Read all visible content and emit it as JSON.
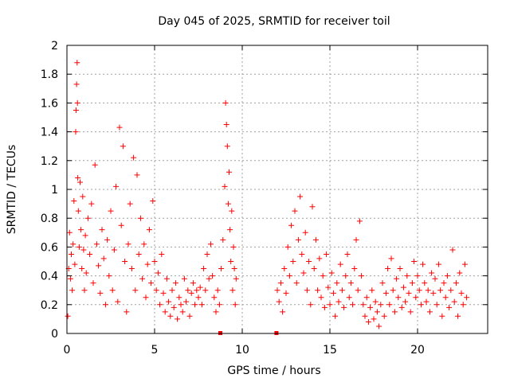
{
  "chart_data": {
    "type": "scatter",
    "title": "Day 045 of 2025, SRMTID for receiver toil",
    "xlabel": "GPS time / hours",
    "ylabel": "SRMTID / TECUs",
    "xlim": [
      0,
      24
    ],
    "ylim": [
      0,
      2
    ],
    "xticks": [
      0,
      5,
      10,
      15,
      20
    ],
    "xtick_labels": [
      "0",
      "5",
      "10",
      "15",
      "20"
    ],
    "yticks": [
      0,
      0.2,
      0.4,
      0.6,
      0.8,
      1.0,
      1.2,
      1.4,
      1.6,
      1.8,
      2.0
    ],
    "ytick_labels": [
      "0",
      "0.2",
      "0.4",
      "0.6",
      "0.8",
      "1",
      "1.2",
      "1.4",
      "1.6",
      "1.8",
      "2"
    ],
    "grid": true,
    "marker": "+",
    "color": "#ff0000",
    "series": [
      {
        "name": "SRMTID",
        "points": [
          [
            0.05,
            0.12
          ],
          [
            0.1,
            0.45
          ],
          [
            0.15,
            0.7
          ],
          [
            0.2,
            0.38
          ],
          [
            0.25,
            0.55
          ],
          [
            0.3,
            0.3
          ],
          [
            0.35,
            0.62
          ],
          [
            0.4,
            0.92
          ],
          [
            0.45,
            0.48
          ],
          [
            0.5,
            1.4
          ],
          [
            0.52,
            1.55
          ],
          [
            0.55,
            1.73
          ],
          [
            0.58,
            1.88
          ],
          [
            0.6,
            1.6
          ],
          [
            0.62,
            1.08
          ],
          [
            0.65,
            0.85
          ],
          [
            0.7,
            0.6
          ],
          [
            0.75,
            1.05
          ],
          [
            0.8,
            0.72
          ],
          [
            0.85,
            0.45
          ],
          [
            0.9,
            0.95
          ],
          [
            0.95,
            0.58
          ],
          [
            1.0,
            0.3
          ],
          [
            1.05,
            0.68
          ],
          [
            1.1,
            0.42
          ],
          [
            1.2,
            0.8
          ],
          [
            1.3,
            0.55
          ],
          [
            1.4,
            0.9
          ],
          [
            1.5,
            0.35
          ],
          [
            1.6,
            1.17
          ],
          [
            1.7,
            0.62
          ],
          [
            1.8,
            0.47
          ],
          [
            1.9,
            0.28
          ],
          [
            2.0,
            0.72
          ],
          [
            2.1,
            0.52
          ],
          [
            2.2,
            0.2
          ],
          [
            2.3,
            0.65
          ],
          [
            2.4,
            0.4
          ],
          [
            2.5,
            0.85
          ],
          [
            2.6,
            0.3
          ],
          [
            2.7,
            0.58
          ],
          [
            2.8,
            1.02
          ],
          [
            2.9,
            0.22
          ],
          [
            3.0,
            1.43
          ],
          [
            3.1,
            0.75
          ],
          [
            3.2,
            1.3
          ],
          [
            3.3,
            0.5
          ],
          [
            3.4,
            0.15
          ],
          [
            3.5,
            0.62
          ],
          [
            3.6,
            0.9
          ],
          [
            3.7,
            0.45
          ],
          [
            3.8,
            1.22
          ],
          [
            3.9,
            0.3
          ],
          [
            4.0,
            1.1
          ],
          [
            4.1,
            0.55
          ],
          [
            4.2,
            0.8
          ],
          [
            4.3,
            0.38
          ],
          [
            4.4,
            0.62
          ],
          [
            4.5,
            0.25
          ],
          [
            4.6,
            0.48
          ],
          [
            4.7,
            0.72
          ],
          [
            4.8,
            0.35
          ],
          [
            4.9,
            0.92
          ],
          [
            5.0,
            0.5
          ],
          [
            5.1,
            0.3
          ],
          [
            5.2,
            0.42
          ],
          [
            5.3,
            0.2
          ],
          [
            5.4,
            0.55
          ],
          [
            5.5,
            0.28
          ],
          [
            5.6,
            0.15
          ],
          [
            5.7,
            0.38
          ],
          [
            5.8,
            0.22
          ],
          [
            5.9,
            0.12
          ],
          [
            6.0,
            0.3
          ],
          [
            6.1,
            0.18
          ],
          [
            6.2,
            0.35
          ],
          [
            6.3,
            0.1
          ],
          [
            6.4,
            0.25
          ],
          [
            6.5,
            0.2
          ],
          [
            6.6,
            0.15
          ],
          [
            6.7,
            0.38
          ],
          [
            6.8,
            0.22
          ],
          [
            6.9,
            0.3
          ],
          [
            7.0,
            0.12
          ],
          [
            7.1,
            0.28
          ],
          [
            7.2,
            0.35
          ],
          [
            7.3,
            0.2
          ],
          [
            7.4,
            0.3
          ],
          [
            7.5,
            0.25
          ],
          [
            7.6,
            0.32
          ],
          [
            7.7,
            0.2
          ],
          [
            7.8,
            0.45
          ],
          [
            7.9,
            0.3
          ],
          [
            8.0,
            0.55
          ],
          [
            8.1,
            0.38
          ],
          [
            8.2,
            0.62
          ],
          [
            8.3,
            0.4
          ],
          [
            8.4,
            0.25
          ],
          [
            8.5,
            0.15
          ],
          [
            8.6,
            0.3
          ],
          [
            8.7,
            0.2
          ],
          [
            8.8,
            0.45
          ],
          [
            8.9,
            0.65
          ],
          [
            9.0,
            1.02
          ],
          [
            9.05,
            1.6
          ],
          [
            9.1,
            1.45
          ],
          [
            9.15,
            1.3
          ],
          [
            9.2,
            0.9
          ],
          [
            9.25,
            1.12
          ],
          [
            9.3,
            0.72
          ],
          [
            9.35,
            0.5
          ],
          [
            9.4,
            0.85
          ],
          [
            9.45,
            0.3
          ],
          [
            9.5,
            0.6
          ],
          [
            9.55,
            0.45
          ],
          [
            9.6,
            0.2
          ],
          [
            9.65,
            0.38
          ],
          [
            12.0,
            0.3
          ],
          [
            12.1,
            0.22
          ],
          [
            12.2,
            0.35
          ],
          [
            12.3,
            0.15
          ],
          [
            12.4,
            0.45
          ],
          [
            12.5,
            0.28
          ],
          [
            12.6,
            0.6
          ],
          [
            12.7,
            0.4
          ],
          [
            12.8,
            0.75
          ],
          [
            12.9,
            0.5
          ],
          [
            13.0,
            0.85
          ],
          [
            13.1,
            0.35
          ],
          [
            13.2,
            0.65
          ],
          [
            13.3,
            0.95
          ],
          [
            13.4,
            0.55
          ],
          [
            13.5,
            0.42
          ],
          [
            13.6,
            0.7
          ],
          [
            13.7,
            0.3
          ],
          [
            13.8,
            0.5
          ],
          [
            13.9,
            0.2
          ],
          [
            14.0,
            0.88
          ],
          [
            14.1,
            0.45
          ],
          [
            14.2,
            0.65
          ],
          [
            14.3,
            0.3
          ],
          [
            14.4,
            0.52
          ],
          [
            14.5,
            0.25
          ],
          [
            14.6,
            0.4
          ],
          [
            14.7,
            0.18
          ],
          [
            14.8,
            0.55
          ],
          [
            14.9,
            0.32
          ],
          [
            15.0,
            0.2
          ],
          [
            15.1,
            0.42
          ],
          [
            15.2,
            0.28
          ],
          [
            15.3,
            0.12
          ],
          [
            15.4,
            0.35
          ],
          [
            15.5,
            0.22
          ],
          [
            15.6,
            0.48
          ],
          [
            15.7,
            0.3
          ],
          [
            15.8,
            0.18
          ],
          [
            15.9,
            0.4
          ],
          [
            16.0,
            0.55
          ],
          [
            16.1,
            0.25
          ],
          [
            16.2,
            0.35
          ],
          [
            16.3,
            0.2
          ],
          [
            16.4,
            0.45
          ],
          [
            16.5,
            0.65
          ],
          [
            16.6,
            0.3
          ],
          [
            16.7,
            0.78
          ],
          [
            16.8,
            0.4
          ],
          [
            16.9,
            0.2
          ],
          [
            17.0,
            0.12
          ],
          [
            17.1,
            0.25
          ],
          [
            17.2,
            0.08
          ],
          [
            17.3,
            0.18
          ],
          [
            17.4,
            0.3
          ],
          [
            17.5,
            0.1
          ],
          [
            17.6,
            0.22
          ],
          [
            17.7,
            0.15
          ],
          [
            17.8,
            0.05
          ],
          [
            17.9,
            0.2
          ],
          [
            18.0,
            0.35
          ],
          [
            18.1,
            0.12
          ],
          [
            18.2,
            0.28
          ],
          [
            18.3,
            0.45
          ],
          [
            18.4,
            0.2
          ],
          [
            18.5,
            0.52
          ],
          [
            18.6,
            0.3
          ],
          [
            18.7,
            0.15
          ],
          [
            18.8,
            0.38
          ],
          [
            18.9,
            0.25
          ],
          [
            19.0,
            0.45
          ],
          [
            19.1,
            0.18
          ],
          [
            19.2,
            0.32
          ],
          [
            19.3,
            0.22
          ],
          [
            19.4,
            0.4
          ],
          [
            19.5,
            0.28
          ],
          [
            19.6,
            0.15
          ],
          [
            19.7,
            0.35
          ],
          [
            19.8,
            0.5
          ],
          [
            19.9,
            0.25
          ],
          [
            20.0,
            0.4
          ],
          [
            20.1,
            0.3
          ],
          [
            20.2,
            0.2
          ],
          [
            20.3,
            0.48
          ],
          [
            20.4,
            0.35
          ],
          [
            20.5,
            0.22
          ],
          [
            20.6,
            0.3
          ],
          [
            20.7,
            0.15
          ],
          [
            20.8,
            0.42
          ],
          [
            20.9,
            0.28
          ],
          [
            21.0,
            0.38
          ],
          [
            21.1,
            0.2
          ],
          [
            21.2,
            0.48
          ],
          [
            21.3,
            0.3
          ],
          [
            21.4,
            0.12
          ],
          [
            21.5,
            0.35
          ],
          [
            21.6,
            0.25
          ],
          [
            21.7,
            0.4
          ],
          [
            21.8,
            0.18
          ],
          [
            21.9,
            0.3
          ],
          [
            22.0,
            0.58
          ],
          [
            22.1,
            0.22
          ],
          [
            22.2,
            0.35
          ],
          [
            22.3,
            0.12
          ],
          [
            22.4,
            0.42
          ],
          [
            22.5,
            0.28
          ],
          [
            22.6,
            0.2
          ],
          [
            22.7,
            0.48
          ],
          [
            22.8,
            0.25
          ]
        ]
      }
    ],
    "zero_markers": [
      8.75,
      11.95
    ]
  }
}
